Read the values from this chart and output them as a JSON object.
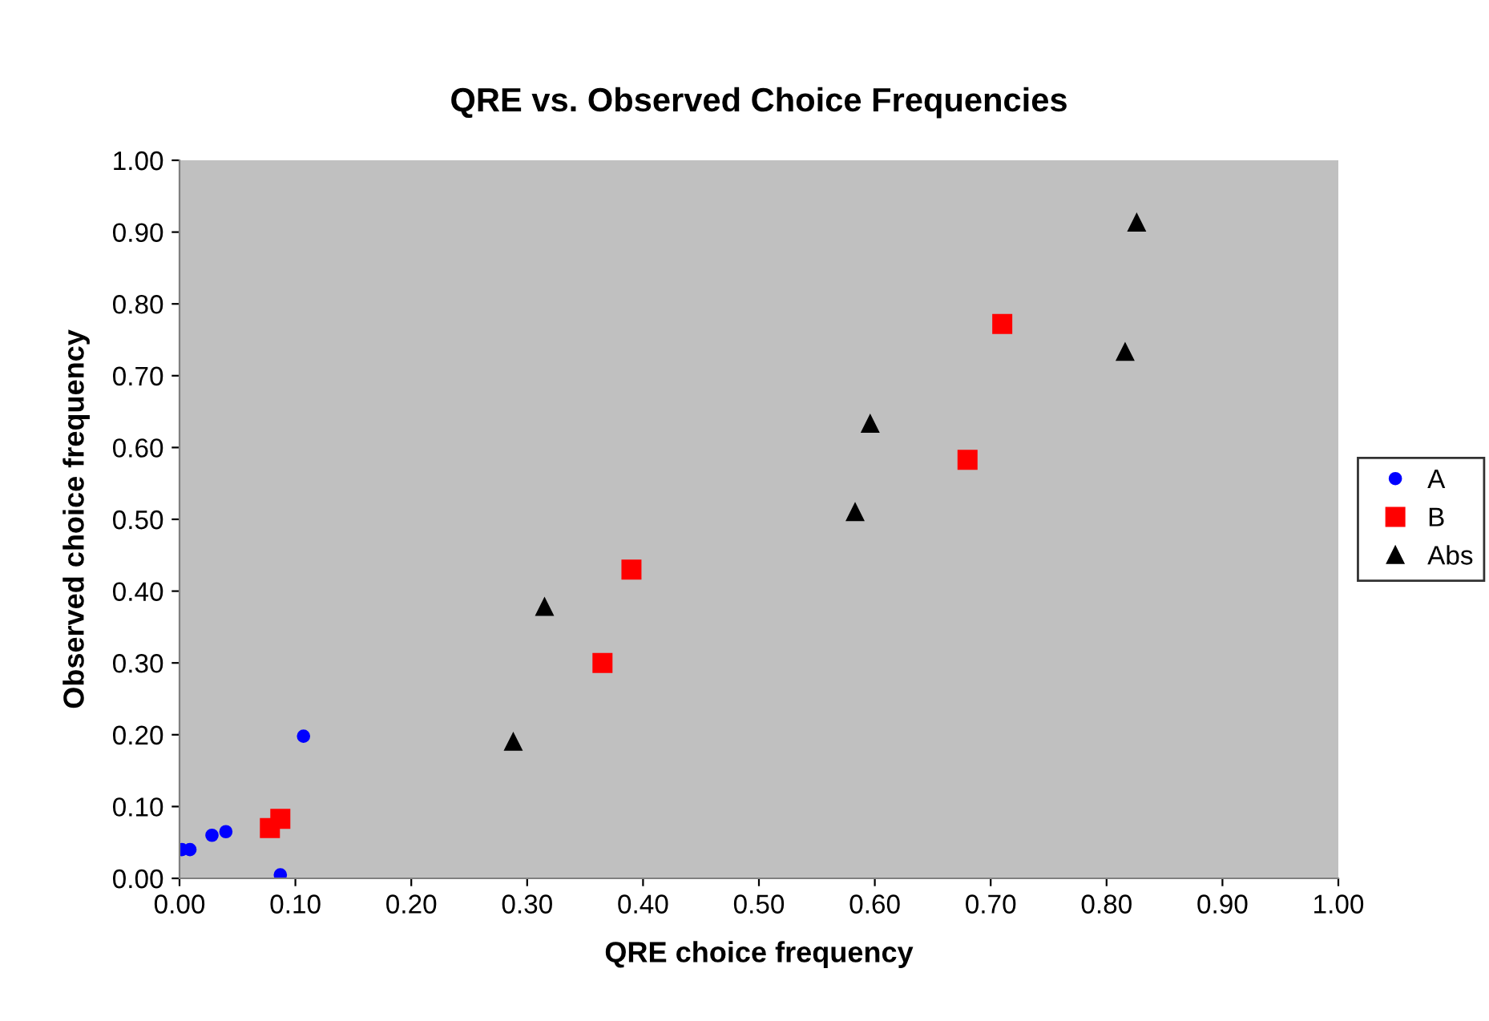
{
  "chart_data": {
    "type": "scatter",
    "title": "QRE vs. Observed Choice Frequencies",
    "xlabel": "QRE choice frequency",
    "ylabel": "Observed choice frequency",
    "series": [
      {
        "name": "A",
        "color": "#0000ff",
        "marker": "circle",
        "x": [
          0.002,
          0.009,
          0.028,
          0.04,
          0.087,
          0.107
        ],
        "values": [
          0.04,
          0.04,
          0.06,
          0.065,
          0.005,
          0.198
        ]
      },
      {
        "name": "B",
        "color": "#ff0000",
        "marker": "square",
        "x": [
          0.078,
          0.087,
          0.365,
          0.39,
          0.68,
          0.71
        ],
        "values": [
          0.07,
          0.083,
          0.3,
          0.43,
          0.583,
          0.772
        ]
      },
      {
        "name": "Abs",
        "color": "#000000",
        "marker": "triangle",
        "x": [
          0.288,
          0.315,
          0.583,
          0.596,
          0.816,
          0.826
        ],
        "values": [
          0.19,
          0.378,
          0.51,
          0.633,
          0.733,
          0.913
        ]
      }
    ],
    "xlim": [
      0,
      1
    ],
    "ylim": [
      0,
      1
    ],
    "xticks": [
      {
        "value": 0,
        "label": "0.00"
      },
      {
        "value": 0.1,
        "label": "0.10"
      },
      {
        "value": 0.2,
        "label": "0.20"
      },
      {
        "value": 0.3,
        "label": "0.30"
      },
      {
        "value": 0.4,
        "label": "0.40"
      },
      {
        "value": 0.5,
        "label": "0.50"
      },
      {
        "value": 0.6,
        "label": "0.60"
      },
      {
        "value": 0.7,
        "label": "0.70"
      },
      {
        "value": 0.8,
        "label": "0.80"
      },
      {
        "value": 0.9,
        "label": "0.90"
      },
      {
        "value": 1,
        "label": "1.00"
      }
    ],
    "yticks": [
      {
        "value": 0,
        "label": "0.00"
      },
      {
        "value": 0.1,
        "label": "0.10"
      },
      {
        "value": 0.2,
        "label": "0.20"
      },
      {
        "value": 0.3,
        "label": "0.30"
      },
      {
        "value": 0.4,
        "label": "0.40"
      },
      {
        "value": 0.5,
        "label": "0.50"
      },
      {
        "value": 0.6,
        "label": "0.60"
      },
      {
        "value": 0.7,
        "label": "0.70"
      },
      {
        "value": 0.8,
        "label": "0.80"
      },
      {
        "value": 0.9,
        "label": "0.90"
      },
      {
        "value": 1,
        "label": "1.00"
      }
    ],
    "grid": false,
    "legend": "right"
  }
}
